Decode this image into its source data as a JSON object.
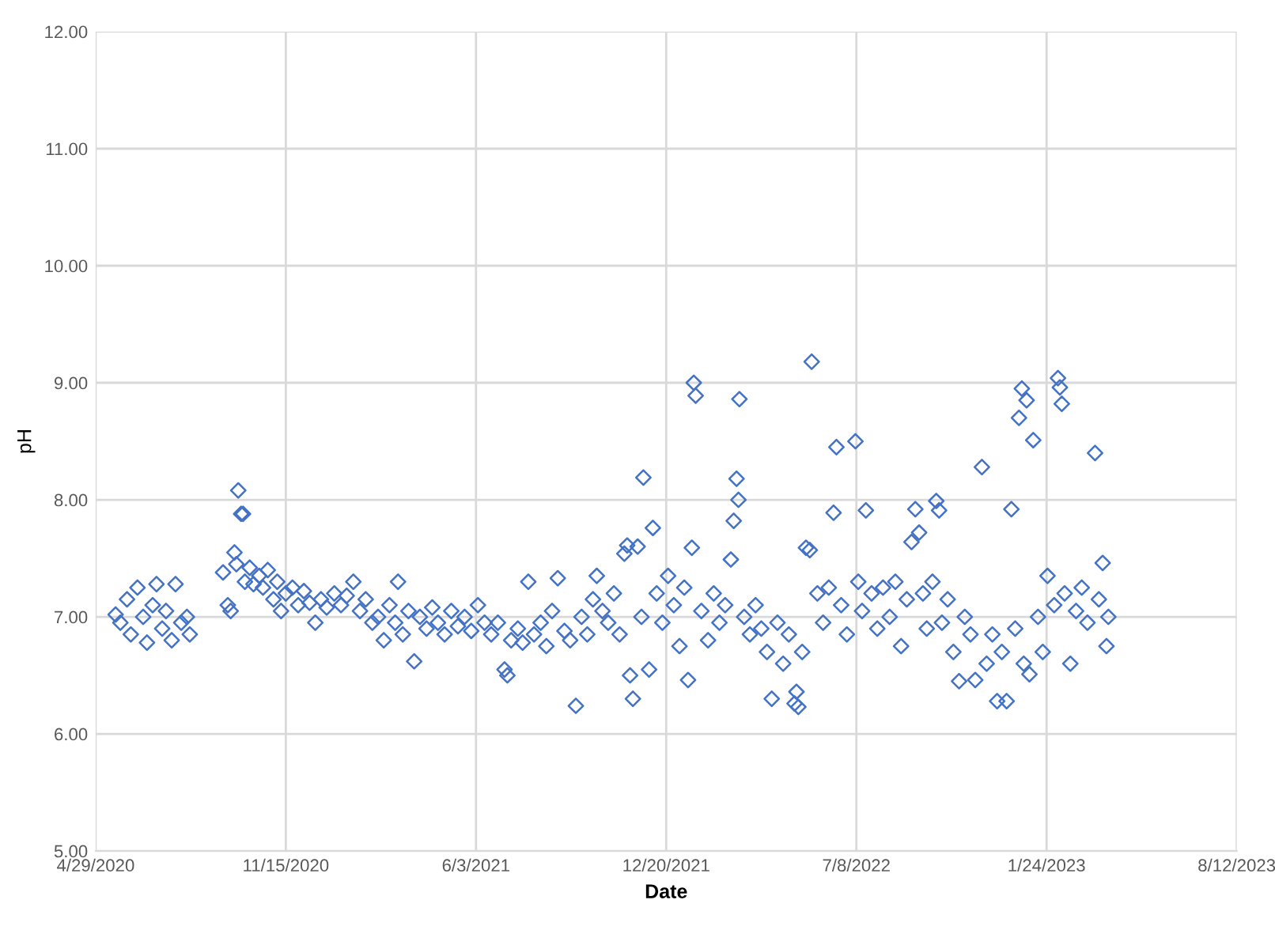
{
  "chart_data": {
    "type": "scatter",
    "xlabel": "Date",
    "ylabel": "pH",
    "marker": "diamond",
    "grid": true,
    "color": "#4472c4",
    "x": [
      "2020-05-20",
      "2020-05-25",
      "2020-06-01",
      "2020-06-05",
      "2020-06-12",
      "2020-06-18",
      "2020-06-22",
      "2020-06-28",
      "2020-07-02",
      "2020-07-08",
      "2020-07-12",
      "2020-07-18",
      "2020-07-22",
      "2020-07-28",
      "2020-08-03",
      "2020-08-06",
      "2020-09-10",
      "2020-09-15",
      "2020-09-18",
      "2020-09-22",
      "2020-09-24",
      "2020-09-26",
      "2020-09-29",
      "2020-10-01",
      "2020-10-03",
      "2020-10-08",
      "2020-10-12",
      "2020-10-18",
      "2020-10-22",
      "2020-10-27",
      "2020-11-02",
      "2020-11-06",
      "2020-11-10",
      "2020-11-15",
      "2020-11-22",
      "2020-11-28",
      "2020-12-04",
      "2020-12-10",
      "2020-12-16",
      "2020-12-22",
      "2020-12-28",
      "2021-01-05",
      "2021-01-12",
      "2021-01-18",
      "2021-01-25",
      "2021-02-01",
      "2021-02-07",
      "2021-02-14",
      "2021-02-20",
      "2021-02-26",
      "2021-03-04",
      "2021-03-10",
      "2021-03-13",
      "2021-03-18",
      "2021-03-24",
      "2021-03-30",
      "2021-04-05",
      "2021-04-12",
      "2021-04-18",
      "2021-04-24",
      "2021-05-01",
      "2021-05-08",
      "2021-05-15",
      "2021-05-22",
      "2021-05-29",
      "2021-06-05",
      "2021-06-12",
      "2021-06-19",
      "2021-06-26",
      "2021-07-03",
      "2021-07-06",
      "2021-07-10",
      "2021-07-17",
      "2021-07-22",
      "2021-07-28",
      "2021-08-03",
      "2021-08-10",
      "2021-08-16",
      "2021-08-22",
      "2021-08-28",
      "2021-09-04",
      "2021-09-10",
      "2021-09-16",
      "2021-09-22",
      "2021-09-28",
      "2021-10-04",
      "2021-10-08",
      "2021-10-14",
      "2021-10-20",
      "2021-10-26",
      "2021-11-01",
      "2021-11-06",
      "2021-11-09",
      "2021-11-12",
      "2021-11-15",
      "2021-11-20",
      "2021-11-24",
      "2021-11-26",
      "2021-12-02",
      "2021-12-06",
      "2021-12-10",
      "2021-12-16",
      "2021-12-22",
      "2021-12-28",
      "2022-01-03",
      "2022-01-08",
      "2022-01-12",
      "2022-01-16",
      "2022-01-18",
      "2022-01-20",
      "2022-01-26",
      "2022-02-02",
      "2022-02-08",
      "2022-02-14",
      "2022-02-20",
      "2022-02-26",
      "2022-03-01",
      "2022-03-04",
      "2022-03-06",
      "2022-03-07",
      "2022-03-12",
      "2022-03-18",
      "2022-03-24",
      "2022-03-30",
      "2022-04-05",
      "2022-04-10",
      "2022-04-16",
      "2022-04-22",
      "2022-04-28",
      "2022-05-04",
      "2022-05-06",
      "2022-05-08",
      "2022-05-12",
      "2022-05-16",
      "2022-05-20",
      "2022-05-22",
      "2022-05-28",
      "2022-06-03",
      "2022-06-09",
      "2022-06-14",
      "2022-06-17",
      "2022-06-22",
      "2022-06-28",
      "2022-07-07",
      "2022-07-10",
      "2022-07-14",
      "2022-07-18",
      "2022-07-24",
      "2022-07-30",
      "2022-08-05",
      "2022-08-12",
      "2022-08-18",
      "2022-08-24",
      "2022-08-30",
      "2022-09-04",
      "2022-09-08",
      "2022-09-12",
      "2022-09-16",
      "2022-09-20",
      "2022-09-26",
      "2022-09-30",
      "2022-10-03",
      "2022-10-06",
      "2022-10-12",
      "2022-10-18",
      "2022-10-24",
      "2022-10-30",
      "2022-11-05",
      "2022-11-10",
      "2022-11-17",
      "2022-11-22",
      "2022-11-28",
      "2022-12-03",
      "2022-12-08",
      "2022-12-13",
      "2022-12-18",
      "2022-12-22",
      "2022-12-26",
      "2022-12-29",
      "2022-12-31",
      "2023-01-03",
      "2023-01-06",
      "2023-01-10",
      "2023-01-15",
      "2023-01-20",
      "2023-01-25",
      "2023-02-01",
      "2023-02-05",
      "2023-02-07",
      "2023-02-09",
      "2023-02-12",
      "2023-02-18",
      "2023-02-24",
      "2023-03-02",
      "2023-03-08",
      "2023-03-16",
      "2023-03-20",
      "2023-03-24",
      "2023-03-28",
      "2023-03-30"
    ],
    "values": [
      7.02,
      6.95,
      7.15,
      6.85,
      7.25,
      7.0,
      6.78,
      7.1,
      7.28,
      6.9,
      7.05,
      6.8,
      7.28,
      6.95,
      7.0,
      6.85,
      7.38,
      7.1,
      7.05,
      7.55,
      7.45,
      8.08,
      7.88,
      7.88,
      7.3,
      7.42,
      7.28,
      7.35,
      7.25,
      7.4,
      7.15,
      7.3,
      7.05,
      7.2,
      7.25,
      7.1,
      7.22,
      7.12,
      6.95,
      7.15,
      7.08,
      7.2,
      7.1,
      7.18,
      7.3,
      7.05,
      7.15,
      6.95,
      7.0,
      6.8,
      7.1,
      6.95,
      7.3,
      6.85,
      7.05,
      6.62,
      7.0,
      6.9,
      7.08,
      6.95,
      6.85,
      7.05,
      6.92,
      7.0,
      6.88,
      7.1,
      6.95,
      6.85,
      6.95,
      6.55,
      6.5,
      6.8,
      6.9,
      6.78,
      7.3,
      6.85,
      6.95,
      6.75,
      7.05,
      7.33,
      6.88,
      6.8,
      6.24,
      7.0,
      6.85,
      7.15,
      7.35,
      7.05,
      6.95,
      7.2,
      6.85,
      7.54,
      7.61,
      6.5,
      6.3,
      7.6,
      7.0,
      8.19,
      6.55,
      7.76,
      7.2,
      6.95,
      7.35,
      7.1,
      6.75,
      7.25,
      6.46,
      7.59,
      9.0,
      8.89,
      7.05,
      6.8,
      7.2,
      6.95,
      7.1,
      7.49,
      7.82,
      8.18,
      8.0,
      8.86,
      7.0,
      6.85,
      7.1,
      6.9,
      6.7,
      6.3,
      6.95,
      6.6,
      6.85,
      6.26,
      6.36,
      6.23,
      6.7,
      7.59,
      7.57,
      9.18,
      7.2,
      6.95,
      7.25,
      7.89,
      8.45,
      7.1,
      6.85,
      8.5,
      7.3,
      7.05,
      7.91,
      7.2,
      6.9,
      7.25,
      7.0,
      7.3,
      6.75,
      7.15,
      7.64,
      7.92,
      7.72,
      7.2,
      6.9,
      7.3,
      7.99,
      7.91,
      6.95,
      7.15,
      6.7,
      6.45,
      7.0,
      6.85,
      6.46,
      8.28,
      6.6,
      6.85,
      6.28,
      6.7,
      6.28,
      7.92,
      6.9,
      8.7,
      8.95,
      6.6,
      8.85,
      6.51,
      8.51,
      7.0,
      6.7,
      7.35,
      7.1,
      9.04,
      8.96,
      8.82,
      7.2,
      6.6,
      7.05,
      7.25,
      6.95,
      8.4,
      7.15,
      7.46,
      6.75,
      7.0
    ],
    "xlim": [
      "2020-04-29",
      "2023-08-12"
    ],
    "xticks": [
      {
        "value": "2020-04-29",
        "label": "4/29/2020"
      },
      {
        "value": "2020-11-15",
        "label": "11/15/2020"
      },
      {
        "value": "2021-06-03",
        "label": "6/3/2021"
      },
      {
        "value": "2021-12-20",
        "label": "12/20/2021"
      },
      {
        "value": "2022-07-08",
        "label": "7/8/2022"
      },
      {
        "value": "2023-01-24",
        "label": "1/24/2023"
      },
      {
        "value": "2023-08-12",
        "label": "8/12/2023"
      }
    ],
    "ylim": [
      5,
      12
    ],
    "yticks": [
      {
        "value": 5,
        "label": "5.00"
      },
      {
        "value": 6,
        "label": "6.00"
      },
      {
        "value": 7,
        "label": "7.00"
      },
      {
        "value": 8,
        "label": "8.00"
      },
      {
        "value": 9,
        "label": "9.00"
      },
      {
        "value": 10,
        "label": "10.00"
      },
      {
        "value": 11,
        "label": "11.00"
      },
      {
        "value": 12,
        "label": "12.00"
      }
    ]
  }
}
